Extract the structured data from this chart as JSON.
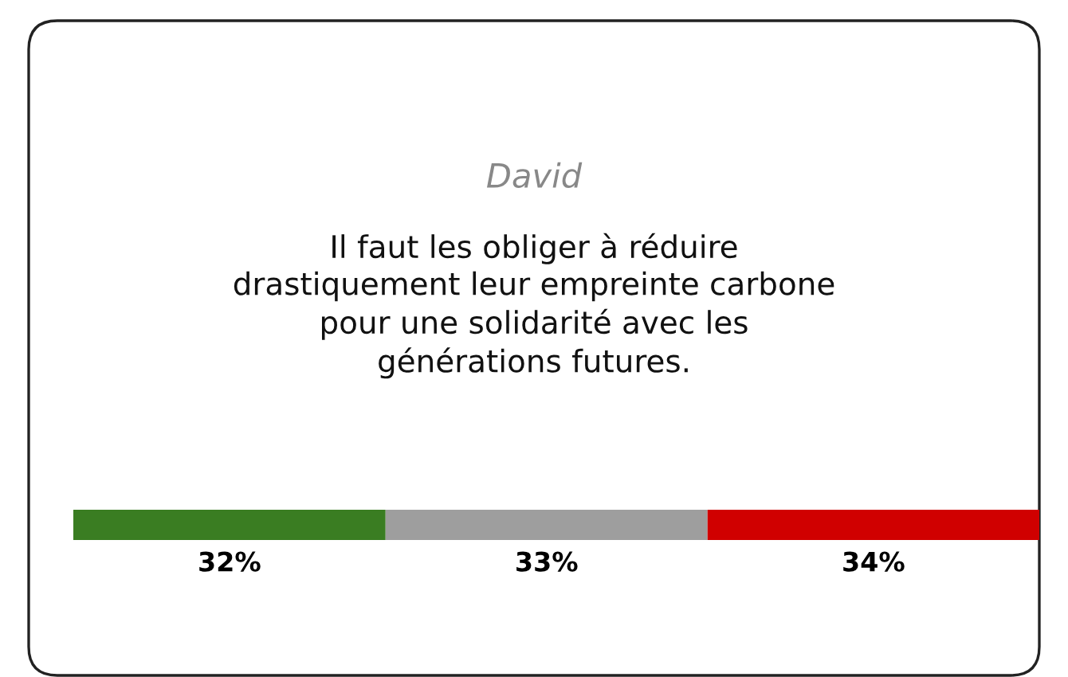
{
  "chart_data": {
    "type": "bar",
    "title": "David",
    "subtitle": "Il faut les obliger à réduire\ndrastiquement leur empreinte carbone\npour une solidarité avec les\ngénérations futures.",
    "orientation": "horizontal",
    "stacked": true,
    "categories": [
      null
    ],
    "legend": false,
    "series": [
      {
        "color": "#3a7d22",
        "values": [
          32
        ],
        "value_labels": [
          "32%"
        ]
      },
      {
        "color": "#9e9e9e",
        "values": [
          33
        ],
        "value_labels": [
          "33%"
        ]
      },
      {
        "color": "#d00000",
        "values": [
          34
        ],
        "value_labels": [
          "34%"
        ]
      }
    ]
  }
}
